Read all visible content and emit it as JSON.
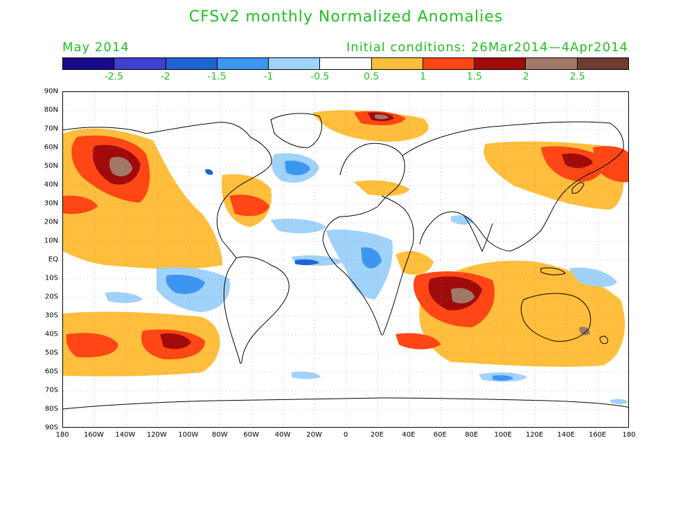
{
  "title": "CFSv2 monthly Normalized Anomalies",
  "valid_month": "May 2014",
  "initial_conditions": "Initial conditions: 26Mar2014—4Apr2014",
  "colorbar": {
    "colors": [
      "#1a0a8c",
      "#3f3fd0",
      "#1e64d2",
      "#3c96f0",
      "#a0d2fa",
      "#ffffff",
      "#ffbe3c",
      "#ff4614",
      "#a00a0a",
      "#a07868",
      "#6e3c32"
    ],
    "labels": [
      "-2.5",
      "-2",
      "-1.5",
      "-1",
      "-0.5",
      "0.5",
      "1",
      "1.5",
      "2",
      "2.5"
    ]
  },
  "lat_labels": [
    "90N",
    "80N",
    "70N",
    "60N",
    "50N",
    "40N",
    "30N",
    "20N",
    "10N",
    "EQ",
    "10S",
    "20S",
    "30S",
    "40S",
    "50S",
    "60S",
    "70S",
    "80S",
    "90S"
  ],
  "lon_labels": [
    "180",
    "160W",
    "140W",
    "120W",
    "100W",
    "80W",
    "60W",
    "40W",
    "20W",
    "0",
    "20E",
    "40E",
    "60E",
    "80E",
    "100E",
    "120E",
    "140E",
    "160E",
    "180"
  ]
}
